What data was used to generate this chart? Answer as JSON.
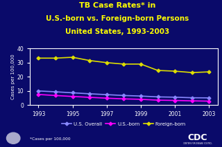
{
  "title_line1": "TB Case Rates* in",
  "title_line2": "U.S.-born vs. Foreign-born Persons",
  "title_line3": "United States, 1993-2003",
  "title_color": "#FFFF00",
  "background_color": "#0A0A6A",
  "plot_bg_color": "#0A0A6A",
  "years": [
    1993,
    1994,
    1995,
    1996,
    1997,
    1998,
    1999,
    2000,
    2001,
    2002,
    2003
  ],
  "us_overall": [
    10.0,
    9.4,
    8.7,
    8.0,
    7.4,
    6.8,
    6.4,
    5.8,
    5.6,
    5.2,
    5.1
  ],
  "us_born": [
    7.5,
    6.8,
    6.1,
    5.5,
    4.9,
    4.4,
    4.1,
    3.5,
    3.3,
    3.0,
    2.8
  ],
  "foreign_born": [
    33.2,
    33.2,
    33.8,
    31.5,
    30.0,
    29.0,
    29.0,
    24.5,
    24.0,
    23.0,
    23.5
  ],
  "ylabel": "Cases per 100,000",
  "ylim": [
    0,
    40
  ],
  "yticks": [
    0,
    10,
    20,
    30,
    40
  ],
  "xlim": [
    1992.5,
    2003.5
  ],
  "xticks": [
    1993,
    1995,
    1997,
    1999,
    2001,
    2003
  ],
  "line_overall_color": "#8888FF",
  "line_born_color": "#FF00FF",
  "line_foreign_color": "#DDDD00",
  "legend_labels": [
    "U.S. Overall",
    "U.S.-born",
    "Foreign-born"
  ],
  "footnote": "*Cases per 100,000",
  "axis_text_color": "#FFFFFF",
  "tick_color": "#FFFFFF",
  "cdc_bg": "#3355AA",
  "cdc_text": "#FFFFFF"
}
